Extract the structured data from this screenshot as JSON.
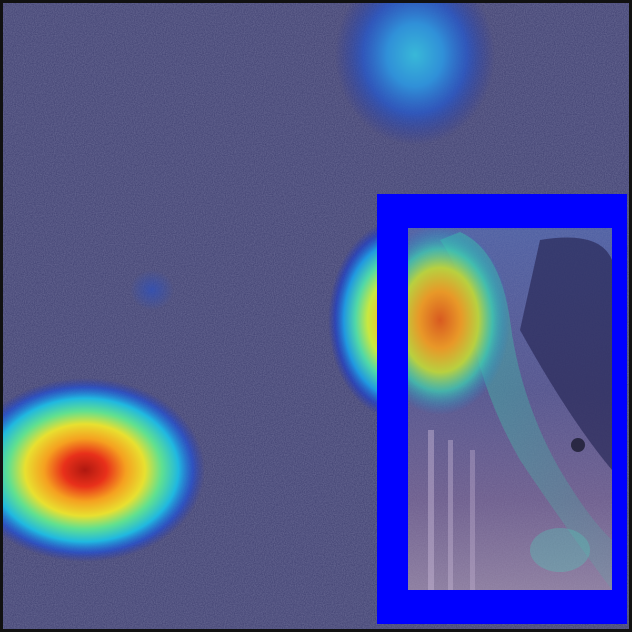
{
  "figure": {
    "kind": "saliency-heatmap-overlay",
    "background_color": "#3c3d6e",
    "colormap": "jet",
    "frame_color": "#111111",
    "highlight_box": {
      "color": "#0000ff",
      "role": "inset-photo-frame"
    },
    "heat_spots": [
      {
        "id": "left-hotspot",
        "peak_level": 1.0
      },
      {
        "id": "center-right-hotspot",
        "peak_level": 0.75
      },
      {
        "id": "top-hotspot",
        "peak_level": 0.35
      },
      {
        "id": "small-faint-spot",
        "peak_level": 0.2
      },
      {
        "id": "inset-hotspot",
        "peak_level": 0.85
      }
    ]
  }
}
